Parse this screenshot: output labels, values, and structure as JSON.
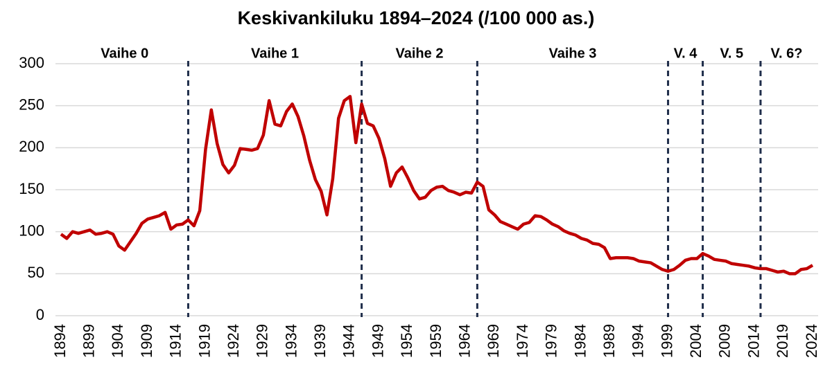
{
  "chart_data": {
    "type": "line",
    "title": "Keskivankiluku 1894–2024 (/100 000 as.)",
    "x": [
      1894,
      1895,
      1896,
      1897,
      1898,
      1899,
      1900,
      1901,
      1902,
      1903,
      1904,
      1905,
      1906,
      1907,
      1908,
      1909,
      1910,
      1911,
      1912,
      1913,
      1914,
      1915,
      1916,
      1917,
      1918,
      1919,
      1920,
      1921,
      1922,
      1923,
      1924,
      1925,
      1926,
      1927,
      1928,
      1929,
      1930,
      1931,
      1932,
      1933,
      1934,
      1935,
      1936,
      1937,
      1938,
      1939,
      1940,
      1941,
      1942,
      1943,
      1944,
      1945,
      1946,
      1947,
      1948,
      1949,
      1950,
      1951,
      1952,
      1953,
      1954,
      1955,
      1956,
      1957,
      1958,
      1959,
      1960,
      1961,
      1962,
      1963,
      1964,
      1965,
      1966,
      1967,
      1968,
      1969,
      1970,
      1971,
      1972,
      1973,
      1974,
      1975,
      1976,
      1977,
      1978,
      1979,
      1980,
      1981,
      1982,
      1983,
      1984,
      1985,
      1986,
      1987,
      1988,
      1989,
      1990,
      1991,
      1992,
      1993,
      1994,
      1995,
      1996,
      1997,
      1998,
      1999,
      2000,
      2001,
      2002,
      2003,
      2004,
      2005,
      2006,
      2007,
      2008,
      2009,
      2010,
      2011,
      2012,
      2013,
      2014,
      2015,
      2016,
      2017,
      2018,
      2019,
      2020,
      2021,
      2022,
      2023,
      2024
    ],
    "series": [
      {
        "color": "#c00000",
        "values": [
          97,
          92,
          100,
          98,
          100,
          102,
          97,
          98,
          100,
          97,
          83,
          78,
          88,
          98,
          110,
          115,
          117,
          119,
          123,
          103,
          108,
          109,
          114,
          107,
          125,
          198,
          245,
          205,
          180,
          170,
          179,
          199,
          198,
          197,
          199,
          215,
          256,
          228,
          226,
          243,
          252,
          237,
          214,
          185,
          162,
          148,
          120,
          163,
          235,
          256,
          261,
          206,
          252,
          229,
          226,
          211,
          187,
          154,
          170,
          177,
          164,
          149,
          139,
          141,
          149,
          153,
          154,
          149,
          147,
          144,
          147,
          146,
          159,
          154,
          126,
          120,
          112,
          109,
          106,
          103,
          109,
          111,
          119,
          118,
          114,
          109,
          106,
          101,
          98,
          96,
          92,
          90,
          86,
          85,
          81,
          68,
          69,
          69,
          69,
          68,
          65,
          64,
          63,
          59,
          55,
          53,
          55,
          60,
          66,
          68,
          68,
          74,
          71,
          67,
          66,
          65,
          62,
          61,
          60,
          59,
          57,
          56,
          56,
          54,
          52,
          53,
          50,
          50,
          55,
          56,
          60
        ]
      }
    ],
    "xlim": [
      1894,
      2024
    ],
    "xticks": [
      1894,
      1899,
      1904,
      1909,
      1914,
      1919,
      1924,
      1929,
      1934,
      1939,
      1944,
      1949,
      1954,
      1959,
      1964,
      1969,
      1974,
      1979,
      1984,
      1989,
      1994,
      1999,
      2004,
      2009,
      2014,
      2019,
      2024
    ],
    "ylim": [
      0,
      300
    ],
    "yticks": [
      0,
      50,
      100,
      150,
      200,
      250,
      300
    ],
    "grid": true,
    "phases": [
      {
        "label": "Vaihe 0",
        "start": 1894,
        "end": 1916
      },
      {
        "label": "Vaihe 1",
        "start": 1916,
        "end": 1946
      },
      {
        "label": "Vaihe 2",
        "start": 1946,
        "end": 1966
      },
      {
        "label": "Vaihe 3",
        "start": 1966,
        "end": 1999
      },
      {
        "label": "V. 4",
        "start": 1999,
        "end": 2005
      },
      {
        "label": "V. 5",
        "start": 2005,
        "end": 2015
      },
      {
        "label": "V. 6?",
        "start": 2015,
        "end": 2024
      }
    ]
  }
}
